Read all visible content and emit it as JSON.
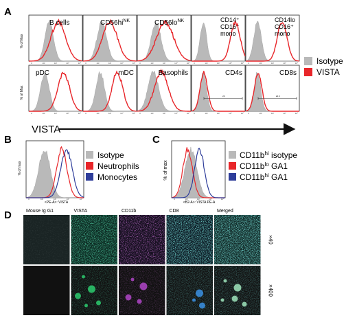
{
  "panel_labels": {
    "a": "A",
    "b": "B",
    "c": "C",
    "d": "D"
  },
  "panelA": {
    "ylabel": "% of Max",
    "xlabel": "VISTA",
    "legend": [
      {
        "label": "Isotype",
        "color": "#b9b9b9"
      },
      {
        "label": "VISTA",
        "color": "#e8262a"
      }
    ],
    "row1": [
      {
        "id": "bcells",
        "title": "B cells",
        "tshape": [
          38,
          8
        ],
        "vshape": [
          55,
          14
        ]
      },
      {
        "id": "cd56hi",
        "title": "CD56hi",
        "sup": "NK",
        "tshape": [
          35,
          9
        ],
        "vshape": [
          50,
          14
        ]
      },
      {
        "id": "cd56lo",
        "title": "CD56lo",
        "sup": "NK",
        "tshape": [
          35,
          9
        ],
        "vshape": [
          52,
          16
        ]
      },
      {
        "id": "cd14mono",
        "title_lines": [
          "CD14⁺",
          "CD16⁻",
          "mono"
        ],
        "tshape": [
          22,
          6
        ],
        "vshape": [
          82,
          9
        ]
      },
      {
        "id": "cd14lo",
        "title_lines": [
          "CD14lo",
          "CD16⁺",
          "mono"
        ],
        "tshape": [
          22,
          7
        ],
        "vshape": [
          68,
          9
        ]
      }
    ],
    "row2": [
      {
        "id": "pdc",
        "title": "pDC",
        "tshape": [
          30,
          8
        ],
        "vshape": [
          65,
          11
        ]
      },
      {
        "id": "mdc",
        "title": "mDC",
        "tshape": [
          32,
          8
        ],
        "vshape": [
          64,
          10
        ]
      },
      {
        "id": "baso",
        "title": "Basophils",
        "tshape": [
          30,
          10
        ],
        "vshape": [
          45,
          13
        ]
      },
      {
        "id": "cd4s",
        "title": "CD4s",
        "tshape": [
          22,
          6
        ],
        "vshape": [
          23,
          7
        ],
        "gate": "23"
      },
      {
        "id": "cd8s",
        "title": "CD8s",
        "tshape": [
          22,
          6
        ],
        "vshape": [
          23,
          7
        ],
        "gate": "22.6"
      }
    ]
  },
  "panelB": {
    "ylabel": "% of max",
    "xlabel": "<PE-A>: VISTA",
    "legend": [
      {
        "label": "Isotype",
        "color": "#b9b9b9"
      },
      {
        "label": "Neutrophils",
        "color": "#e8262a"
      },
      {
        "label": "Monocytes",
        "color": "#2e3d9a"
      }
    ]
  },
  "panelC": {
    "ylabel": "% of max",
    "xlabel": "<B2-A>: VISTA PE-A",
    "legend": [
      {
        "label": "CD11b",
        "sup": "hi",
        "suffix": " isotype",
        "color": "#b9b9b9"
      },
      {
        "label": "CD11b",
        "sup": "lo",
        "suffix": " GA1",
        "color": "#e8262a"
      },
      {
        "label": "CD11b",
        "sup": "hi",
        "suffix": " GA1",
        "color": "#2e3d9a"
      }
    ]
  },
  "panelD": {
    "columns": [
      "Mouse Ig G1",
      "VISTA",
      "CD11b",
      "CD8",
      "Merged"
    ],
    "rows": [
      "×40",
      "×400"
    ]
  }
}
